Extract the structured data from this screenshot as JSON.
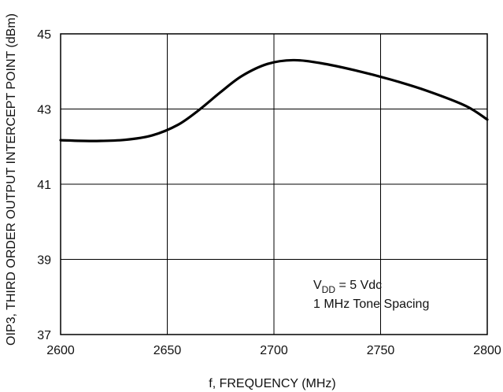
{
  "chart_data": {
    "type": "line",
    "title": "",
    "xlabel": "f, FREQUENCY (MHz)",
    "ylabel": "OIP3, THIRD ORDER OUTPUT INTERCEPT POINT (dBm)",
    "xlim": [
      2600,
      2800
    ],
    "ylim": [
      37,
      45
    ],
    "x_ticks": [
      2600,
      2650,
      2700,
      2750,
      2800
    ],
    "y_ticks": [
      37,
      39,
      41,
      43,
      45
    ],
    "x_tick_labels": [
      "2600",
      "2650",
      "2700",
      "2750",
      "2800"
    ],
    "y_tick_labels": [
      "37",
      "39",
      "41",
      "43",
      "45"
    ],
    "grid": true,
    "series": [
      {
        "x": [
          2600,
          2615,
          2630,
          2643,
          2655,
          2665,
          2675,
          2685,
          2697,
          2709,
          2722,
          2738,
          2755,
          2772,
          2790,
          2800
        ],
        "y": [
          42.17,
          42.15,
          42.18,
          42.3,
          42.58,
          42.98,
          43.45,
          43.88,
          44.2,
          44.3,
          44.22,
          44.03,
          43.78,
          43.48,
          43.08,
          42.72
        ]
      }
    ],
    "annotation": {
      "line1_prefix": "V",
      "line1_subscript": "DD",
      "line1_suffix": " = 5 Vdc",
      "line2": "1 MHz Tone Spacing"
    }
  }
}
